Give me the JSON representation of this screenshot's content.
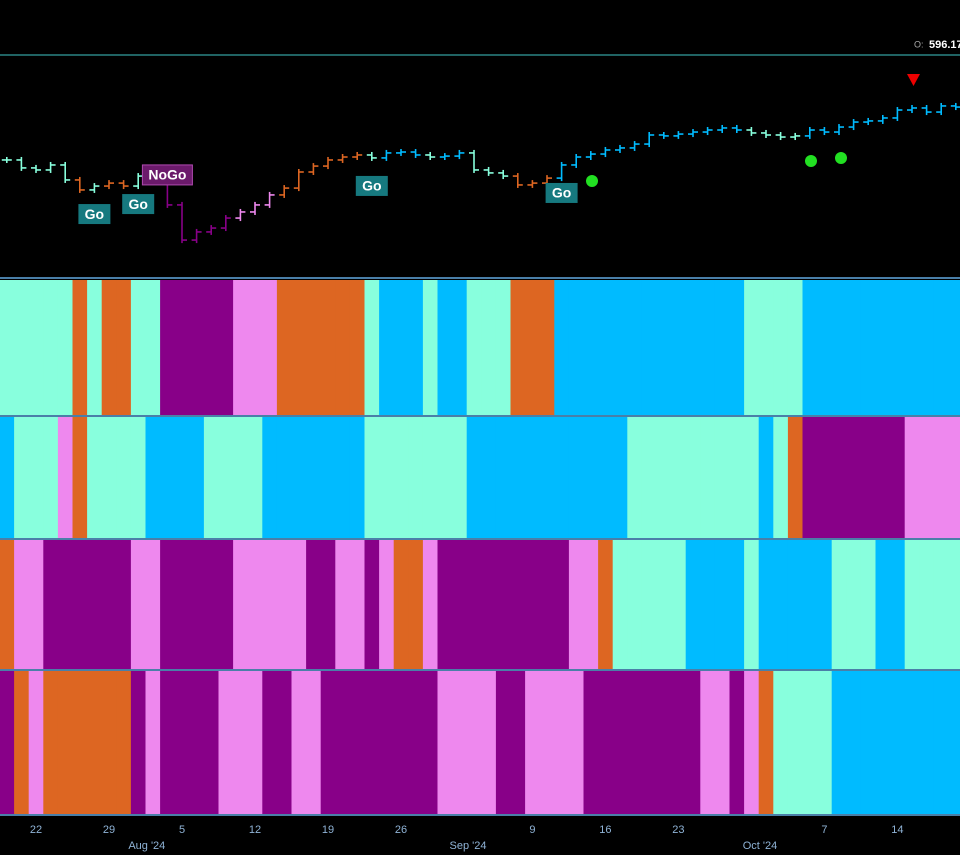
{
  "chart_data": {
    "type": "ohlc",
    "header": {
      "label": "O:",
      "value": 596.17
    },
    "ylim": [
      490,
      610
    ],
    "categories": [
      null,
      null,
      "22",
      null,
      null,
      null,
      null,
      "29",
      null,
      null,
      null,
      null,
      "5",
      null,
      null,
      null,
      null,
      "12",
      null,
      null,
      null,
      null,
      "19",
      null,
      null,
      null,
      null,
      "26",
      null,
      null,
      null,
      null,
      null,
      null,
      null,
      null,
      "9",
      null,
      null,
      null,
      null,
      "16",
      null,
      null,
      null,
      null,
      "23",
      null,
      null,
      null,
      null,
      null,
      null,
      null,
      null,
      null,
      "7",
      null,
      null,
      null,
      null,
      "14",
      null,
      null,
      null,
      null
    ],
    "month_labels": [
      null,
      null,
      null,
      null,
      null,
      null,
      null,
      null,
      null,
      null,
      "Aug '24",
      null,
      null,
      null,
      null,
      null,
      null,
      null,
      null,
      null,
      null,
      null,
      null,
      null,
      null,
      null,
      null,
      null,
      null,
      null,
      null,
      null,
      "Sep '24",
      null,
      null,
      null,
      null,
      null,
      null,
      null,
      null,
      null,
      null,
      null,
      null,
      null,
      null,
      null,
      null,
      null,
      null,
      null,
      "Oct '24",
      null,
      null,
      null,
      null,
      null,
      null,
      null,
      null,
      null,
      null,
      null,
      null,
      null
    ],
    "values": [
      553.8,
      549.5,
      548.4,
      551.1,
      543,
      537.6,
      539.7,
      541.3,
      539.7,
      545.1,
      545.7,
      529.5,
      510.5,
      514.9,
      517,
      522.4,
      525.7,
      529.5,
      534.9,
      538.6,
      547.3,
      550.5,
      553.8,
      555.4,
      556.5,
      554.9,
      557.6,
      558.1,
      556.5,
      555.4,
      555.9,
      557.6,
      548.4,
      546.8,
      545.1,
      540.3,
      541.3,
      544,
      551.1,
      555.4,
      557,
      559.2,
      560.3,
      562.4,
      567.3,
      566.8,
      567.8,
      568.9,
      570,
      571.1,
      570,
      568.4,
      567.3,
      566.2,
      566.8,
      570,
      568.9,
      571.6,
      574.3,
      574.9,
      576.5,
      580.8,
      581.9,
      579.7,
      583,
      582.4
    ],
    "annotations": [
      {
        "label": "Go",
        "index": 6
      },
      {
        "label": "Go",
        "index": 9
      },
      {
        "label": "NoGo",
        "index": 11
      },
      {
        "label": "Go",
        "index": 25
      },
      {
        "label": "Go",
        "index": 38
      }
    ],
    "heatmaps": [
      {
        "colors": [
          "#8fd",
          "#8fd",
          "#8fd",
          "#8fd",
          "#8fd",
          "#d62",
          "#8fd",
          "#d62",
          "#d62",
          "#8fd",
          "#8fd",
          "#808",
          "#808",
          "#808",
          "#808",
          "#808",
          "#e8e",
          "#e8e",
          "#e8e",
          "#d62",
          "#d62",
          "#d62",
          "#d62",
          "#d62",
          "#d62",
          "#8fd",
          "#0bf",
          "#0bf",
          "#0bf",
          "#8fd",
          "#0bf",
          "#0bf",
          "#8fd",
          "#8fd",
          "#8fd",
          "#d62",
          "#d62",
          "#d62",
          "#0bf",
          "#0bf",
          "#0bf",
          "#0bf",
          "#0bf",
          "#0bf",
          "#0bf",
          "#0bf",
          "#0bf",
          "#0bf",
          "#0bf",
          "#0bf",
          "#0bf",
          "#8fd",
          "#8fd",
          "#8fd",
          "#8fd",
          "#0bf",
          "#0bf",
          "#0bf",
          "#0bf",
          "#0bf",
          "#0bf",
          "#0bf",
          "#0bf",
          "#0bf",
          "#0bf",
          "#0bf"
        ]
      },
      {
        "colors": [
          "#0bf",
          "#8fd",
          "#8fd",
          "#8fd",
          "#e8e",
          "#d62",
          "#8fd",
          "#8fd",
          "#8fd",
          "#8fd",
          "#0bf",
          "#0bf",
          "#0bf",
          "#0bf",
          "#8fd",
          "#8fd",
          "#8fd",
          "#8fd",
          "#0bf",
          "#0bf",
          "#0bf",
          "#0bf",
          "#0bf",
          "#0bf",
          "#0bf",
          "#8fd",
          "#8fd",
          "#8fd",
          "#8fd",
          "#8fd",
          "#8fd",
          "#8fd",
          "#0bf",
          "#0bf",
          "#0bf",
          "#0bf",
          "#0bf",
          "#0bf",
          "#0bf",
          "#0bf",
          "#0bf",
          "#0bf",
          "#0bf",
          "#8fd",
          "#8fd",
          "#8fd",
          "#8fd",
          "#8fd",
          "#8fd",
          "#8fd",
          "#8fd",
          "#8fd",
          "#0bf",
          "#8fd",
          "#d62",
          "#808",
          "#808",
          "#808",
          "#808",
          "#808",
          "#808",
          "#808",
          "#e8e",
          "#e8e",
          "#e8e",
          "#e8e"
        ]
      },
      {
        "colors": [
          "#d62",
          "#e8e",
          "#e8e",
          "#808",
          "#808",
          "#808",
          "#808",
          "#808",
          "#808",
          "#e8e",
          "#e8e",
          "#808",
          "#808",
          "#808",
          "#808",
          "#808",
          "#e8e",
          "#e8e",
          "#e8e",
          "#e8e",
          "#e8e",
          "#808",
          "#808",
          "#e8e",
          "#e8e",
          "#808",
          "#e8e",
          "#d62",
          "#d62",
          "#e8e",
          "#808",
          "#808",
          "#808",
          "#808",
          "#808",
          "#808",
          "#808",
          "#808",
          "#808",
          "#e8e",
          "#e8e",
          "#d62",
          "#8fd",
          "#8fd",
          "#8fd",
          "#8fd",
          "#8fd",
          "#0bf",
          "#0bf",
          "#0bf",
          "#0bf",
          "#8fd",
          "#0bf",
          "#0bf",
          "#0bf",
          "#0bf",
          "#0bf",
          "#8fd",
          "#8fd",
          "#8fd",
          "#0bf",
          "#0bf",
          "#8fd",
          "#8fd",
          "#8fd",
          "#8fd"
        ]
      },
      {
        "colors": [
          "#808",
          "#d62",
          "#e8e",
          "#d62",
          "#d62",
          "#d62",
          "#d62",
          "#d62",
          "#d62",
          "#808",
          "#e8e",
          "#808",
          "#808",
          "#808",
          "#808",
          "#e8e",
          "#e8e",
          "#e8e",
          "#808",
          "#808",
          "#e8e",
          "#e8e",
          "#808",
          "#808",
          "#808",
          "#808",
          "#808",
          "#808",
          "#808",
          "#808",
          "#e8e",
          "#e8e",
          "#e8e",
          "#e8e",
          "#808",
          "#808",
          "#e8e",
          "#e8e",
          "#e8e",
          "#e8e",
          "#808",
          "#808",
          "#808",
          "#808",
          "#808",
          "#808",
          "#808",
          "#808",
          "#e8e",
          "#e8e",
          "#808",
          "#e8e",
          "#d62",
          "#8fd",
          "#8fd",
          "#8fd",
          "#8fd",
          "#0bf",
          "#0bf",
          "#0bf",
          "#0bf",
          "#0bf",
          "#0bf",
          "#0bf",
          "#0bf",
          "#0bf"
        ]
      }
    ]
  }
}
